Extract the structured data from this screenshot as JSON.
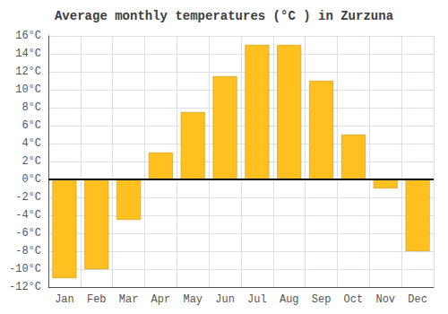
{
  "chart_data": {
    "type": "bar",
    "title": "Average monthly temperatures (°C ) in Zurzuna",
    "categories": [
      "Jan",
      "Feb",
      "Mar",
      "Apr",
      "May",
      "Jun",
      "Jul",
      "Aug",
      "Sep",
      "Oct",
      "Nov",
      "Dec"
    ],
    "values": [
      -11,
      -10,
      -4.5,
      3,
      7.5,
      11.5,
      15,
      15,
      11,
      5,
      -1,
      -8
    ],
    "color": "#FFC020",
    "ylim": [
      -12,
      16
    ],
    "yticks": [
      {
        "value": -12,
        "label": "-12°C"
      },
      {
        "value": -10,
        "label": "-10°C"
      },
      {
        "value": -8,
        "label": "-8°C"
      },
      {
        "value": -6,
        "label": "-6°C"
      },
      {
        "value": -4,
        "label": "-4°C"
      },
      {
        "value": -2,
        "label": "-2°C"
      },
      {
        "value": 0,
        "label": "0°C"
      },
      {
        "value": 2,
        "label": "2°C"
      },
      {
        "value": 4,
        "label": "4°C"
      },
      {
        "value": 6,
        "label": "6°C"
      },
      {
        "value": 8,
        "label": "8°C"
      },
      {
        "value": 10,
        "label": "10°C"
      },
      {
        "value": 12,
        "label": "12°C"
      },
      {
        "value": 14,
        "label": "14°C"
      },
      {
        "value": 16,
        "label": "16°C"
      }
    ],
    "grid": true
  }
}
